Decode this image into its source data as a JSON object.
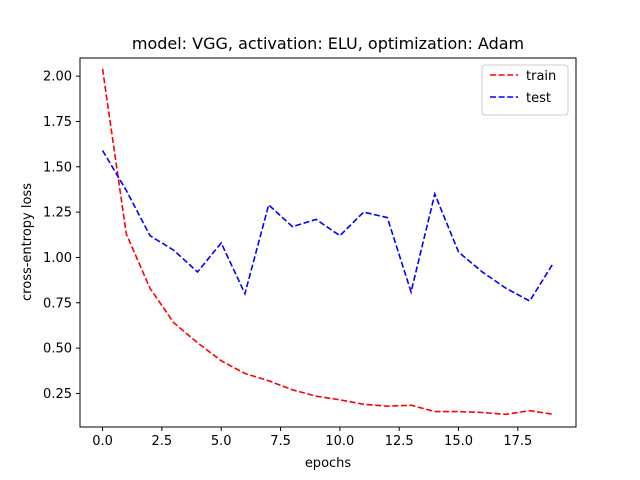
{
  "chart_data": {
    "type": "line",
    "title": "model: VGG, activation: ELU, optimization: Adam",
    "xlabel": "epochs",
    "ylabel": "cross-entropy loss",
    "x": [
      0,
      1,
      2,
      3,
      4,
      5,
      6,
      7,
      8,
      9,
      10,
      11,
      12,
      13,
      14,
      15,
      16,
      17,
      18,
      19
    ],
    "xlim": [
      -0.95,
      19.95
    ],
    "ylim": [
      0.065,
      2.1
    ],
    "xticks": [
      0.0,
      2.5,
      5.0,
      7.5,
      10.0,
      12.5,
      15.0,
      17.5
    ],
    "xtick_labels": [
      "0.0",
      "2.5",
      "5.0",
      "7.5",
      "10.0",
      "12.5",
      "15.0",
      "17.5"
    ],
    "yticks": [
      0.25,
      0.5,
      0.75,
      1.0,
      1.25,
      1.5,
      1.75,
      2.0
    ],
    "ytick_labels": [
      "0.25",
      "0.50",
      "0.75",
      "1.00",
      "1.25",
      "1.50",
      "1.75",
      "2.00"
    ],
    "grid": false,
    "legend_position": "top-right",
    "series": [
      {
        "name": "train",
        "color": "#ff0000",
        "line_style": "dashed",
        "values": [
          2.04,
          1.13,
          0.83,
          0.64,
          0.53,
          0.43,
          0.36,
          0.32,
          0.27,
          0.235,
          0.215,
          0.19,
          0.18,
          0.185,
          0.15,
          0.15,
          0.145,
          0.135,
          0.155,
          0.135
        ]
      },
      {
        "name": "test",
        "color": "#0000ff",
        "line_style": "dashed",
        "values": [
          1.59,
          1.37,
          1.12,
          1.04,
          0.92,
          1.08,
          0.8,
          1.29,
          1.17,
          1.21,
          1.12,
          1.25,
          1.22,
          0.81,
          1.35,
          1.03,
          0.92,
          0.83,
          0.76,
          0.97
        ]
      }
    ]
  }
}
